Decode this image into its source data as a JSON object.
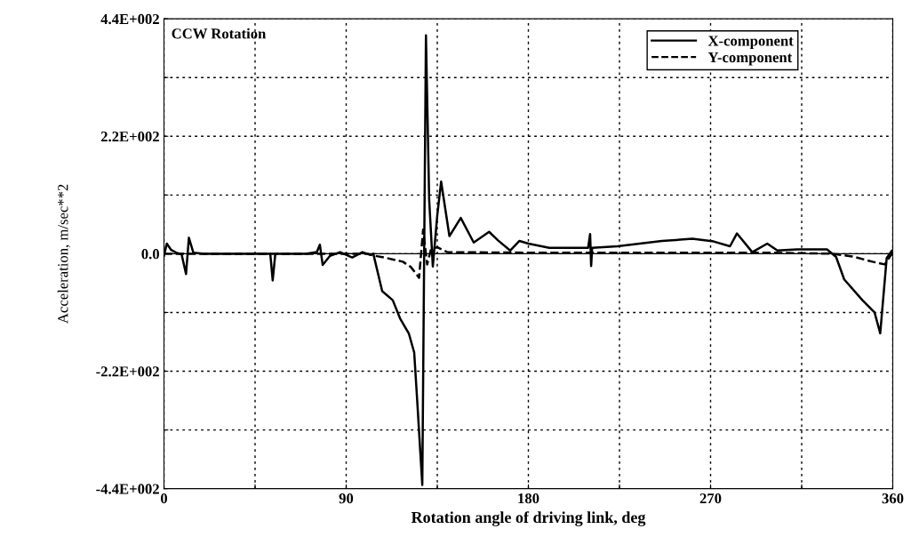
{
  "chart_data": {
    "type": "line",
    "xlabel": "Rotation angle of driving link, deg",
    "ylabel": "Acceleration, m/sec**2",
    "annotations": [
      "CCW Rotation"
    ],
    "xlim": [
      0,
      360
    ],
    "ylim": [
      -440,
      440
    ],
    "xticks": [
      0,
      {
        "value": 45,
        "label": null
      },
      90,
      {
        "value": 135,
        "label": null
      },
      180,
      {
        "value": 225,
        "label": null
      },
      270,
      {
        "value": 315,
        "label": null
      },
      360
    ],
    "yticks": [
      {
        "value": -440,
        "label": "-4.4E+002"
      },
      {
        "value": -330,
        "label": null
      },
      {
        "value": -220,
        "label": "-2.2E+002"
      },
      {
        "value": -110,
        "label": null
      },
      {
        "value": 0,
        "label": "0.0"
      },
      {
        "value": 110,
        "label": null
      },
      {
        "value": 220,
        "label": "2.2E+002"
      },
      {
        "value": 330,
        "label": null
      },
      {
        "value": 440,
        "label": "4.4E+002"
      }
    ],
    "grid": true,
    "legend": "top right",
    "series": [
      {
        "name": "X-component",
        "color": "#000000",
        "line_style": "solid",
        "x": [
          0,
          1.4,
          3.6,
          6,
          8.7,
          10.9,
          12.3,
          14.5,
          20,
          40,
          52.5,
          53.7,
          55,
          70,
          75.5,
          77,
          78.4,
          82,
          87,
          93,
          98,
          102,
          103.4,
          107.8,
          113,
          116.6,
          121,
          123.6,
          125,
          127.6,
          129.4,
          131,
          132.8,
          135,
          136.9,
          141,
          146.6,
          153,
          160.6,
          165,
          171,
          175.6,
          180,
          190.3,
          209.5,
          210.5,
          211,
          211.5,
          224,
          246,
          261,
          271.5,
          279.6,
          283,
          290.6,
          298,
          303,
          312.8,
          327.5,
          332,
          336,
          345,
          351,
          353.8,
          357,
          359.6,
          360
        ],
        "values": [
          -4,
          19,
          7,
          2,
          -1,
          -38,
          30,
          2,
          0,
          0,
          0,
          -50,
          0,
          0,
          3,
          17,
          -21,
          -4,
          3,
          -7,
          3,
          -2,
          0,
          -70,
          -87,
          -121,
          -150,
          -185,
          -270,
          -433,
          409,
          101,
          -24,
          72,
          135,
          33,
          67,
          21,
          41,
          25,
          6,
          24,
          19,
          11,
          11,
          37,
          -23,
          11,
          14,
          24,
          28,
          23,
          14,
          38,
          3,
          19,
          6,
          8,
          8,
          -6,
          -48,
          -87,
          -110,
          -149,
          -8,
          6,
          0
        ]
      },
      {
        "name": "Y-component",
        "color": "#000000",
        "line_style": "dashed",
        "x": [
          0,
          100,
          103,
          110,
          118,
          122,
          126,
          128,
          130,
          132,
          135,
          140,
          180,
          300,
          330,
          340,
          350,
          356,
          359,
          360
        ],
        "values": [
          0,
          0,
          -3,
          -8,
          -15,
          -25,
          -45,
          45,
          -20,
          10,
          12,
          3,
          2,
          2,
          0,
          -5,
          -15,
          -20,
          -3,
          0
        ]
      }
    ]
  }
}
